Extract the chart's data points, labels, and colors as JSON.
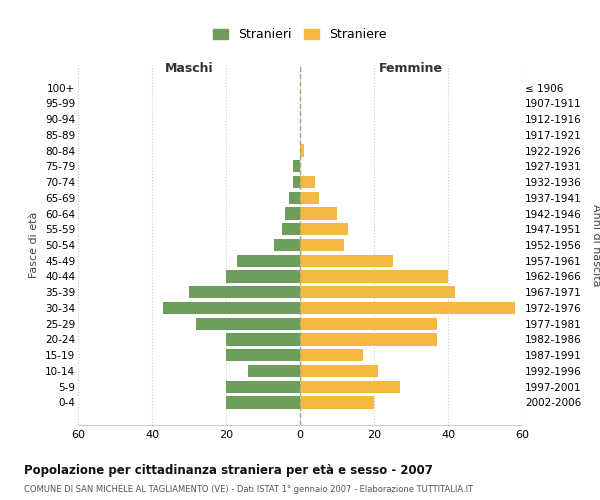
{
  "age_groups": [
    "0-4",
    "5-9",
    "10-14",
    "15-19",
    "20-24",
    "25-29",
    "30-34",
    "35-39",
    "40-44",
    "45-49",
    "50-54",
    "55-59",
    "60-64",
    "65-69",
    "70-74",
    "75-79",
    "80-84",
    "85-89",
    "90-94",
    "95-99",
    "100+"
  ],
  "birth_years": [
    "2002-2006",
    "1997-2001",
    "1992-1996",
    "1987-1991",
    "1982-1986",
    "1977-1981",
    "1972-1976",
    "1967-1971",
    "1962-1966",
    "1957-1961",
    "1952-1956",
    "1947-1951",
    "1942-1946",
    "1937-1941",
    "1932-1936",
    "1927-1931",
    "1922-1926",
    "1917-1921",
    "1912-1916",
    "1907-1911",
    "≤ 1906"
  ],
  "males": [
    20,
    20,
    14,
    20,
    20,
    28,
    37,
    30,
    20,
    17,
    7,
    5,
    4,
    3,
    2,
    2,
    0,
    0,
    0,
    0,
    0
  ],
  "females": [
    20,
    27,
    21,
    17,
    37,
    37,
    58,
    42,
    40,
    25,
    12,
    13,
    10,
    5,
    4,
    0,
    1,
    0,
    0,
    0,
    0
  ],
  "male_color": "#6d9e5b",
  "female_color": "#f5b942",
  "background_color": "#ffffff",
  "grid_color": "#cccccc",
  "title": "Popolazione per cittadinanza straniera per età e sesso - 2007",
  "subtitle": "COMUNE DI SAN MICHELE AL TAGLIAMENTO (VE) - Dati ISTAT 1° gennaio 2007 - Elaborazione TUTTITALIA.IT",
  "xlabel_left": "Maschi",
  "xlabel_right": "Femmine",
  "ylabel_left": "Fasce di età",
  "ylabel_right": "Anni di nascita",
  "legend_male": "Stranieri",
  "legend_female": "Straniere",
  "xlim": 60
}
